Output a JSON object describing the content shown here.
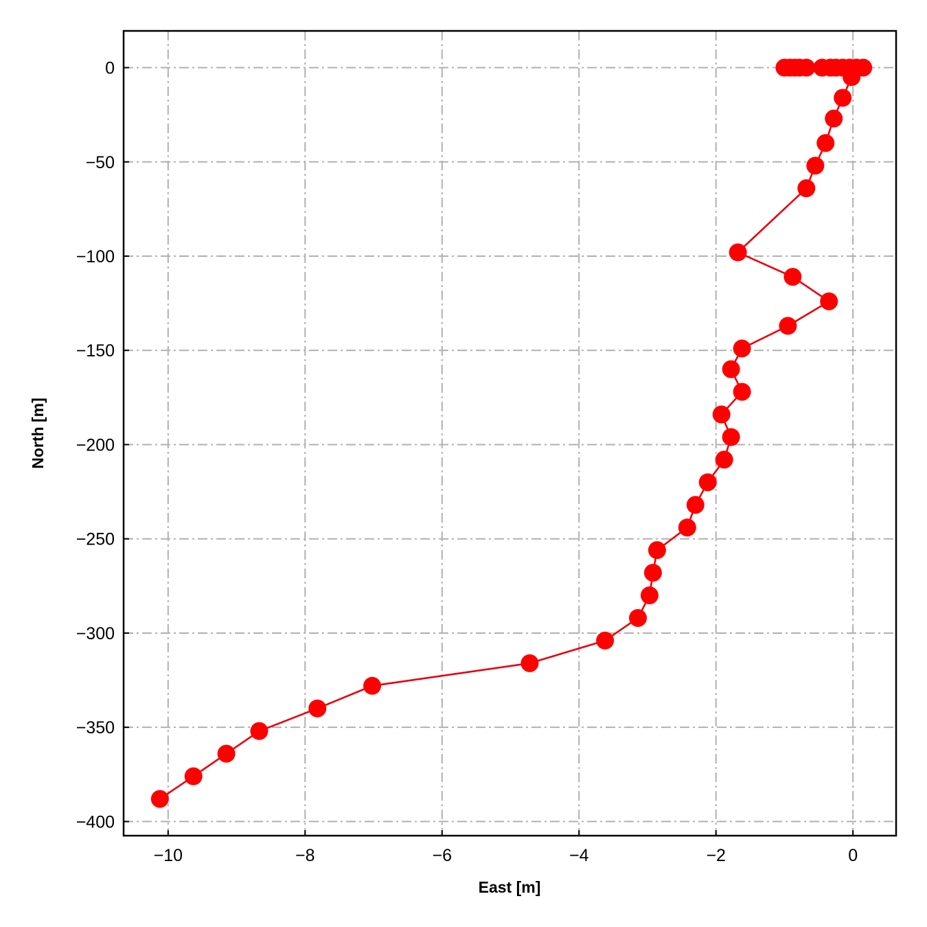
{
  "chart_data": {
    "type": "line",
    "title": "",
    "xlabel": "East [m]",
    "ylabel": "North [m]",
    "xlim": [
      -10.65,
      0.63
    ],
    "ylim": [
      -407.5,
      19.5
    ],
    "xticks": [
      -10,
      -8,
      -6,
      -4,
      -2,
      0
    ],
    "yticks": [
      0,
      -50,
      -100,
      -150,
      -200,
      -250,
      -300,
      -350,
      -400
    ],
    "xtick_labels": [
      "−10",
      "−8",
      "−6",
      "−4",
      "−2",
      "0"
    ],
    "ytick_labels": [
      "0",
      "−50",
      "−100",
      "−150",
      "−200",
      "−250",
      "−300",
      "−350",
      "−400"
    ],
    "grid": true,
    "series": [
      {
        "color": "#e8000b",
        "marker_color": "#ff0000",
        "marker": "circle",
        "points": [
          [
            -1.0,
            0
          ],
          [
            -0.92,
            0
          ],
          [
            -0.85,
            0
          ],
          [
            -0.78,
            0
          ],
          [
            -0.68,
            0
          ],
          [
            -0.45,
            0
          ],
          [
            -0.33,
            0
          ],
          [
            -0.25,
            0
          ],
          [
            -0.15,
            0
          ],
          [
            -0.05,
            0
          ],
          [
            0.05,
            0
          ],
          [
            0.15,
            0
          ],
          [
            -0.02,
            -5
          ],
          [
            -0.15,
            -16
          ],
          [
            -0.28,
            -27
          ],
          [
            -0.4,
            -40
          ],
          [
            -0.55,
            -52
          ],
          [
            -0.68,
            -64
          ],
          [
            -1.68,
            -98
          ],
          [
            -0.88,
            -111
          ],
          [
            -0.35,
            -124
          ],
          [
            -0.95,
            -137
          ],
          [
            -1.62,
            -149
          ],
          [
            -1.78,
            -160
          ],
          [
            -1.62,
            -172
          ],
          [
            -1.92,
            -184
          ],
          [
            -1.78,
            -196
          ],
          [
            -1.88,
            -208
          ],
          [
            -2.12,
            -220
          ],
          [
            -2.3,
            -232
          ],
          [
            -2.42,
            -244
          ],
          [
            -2.86,
            -256
          ],
          [
            -2.92,
            -268
          ],
          [
            -2.97,
            -280
          ],
          [
            -3.14,
            -292
          ],
          [
            -3.62,
            -304
          ],
          [
            -4.72,
            -316
          ],
          [
            -7.02,
            -328
          ],
          [
            -7.82,
            -340
          ],
          [
            -8.67,
            -352
          ],
          [
            -9.15,
            -364
          ],
          [
            -9.63,
            -376
          ],
          [
            -10.12,
            -388
          ]
        ]
      }
    ]
  }
}
